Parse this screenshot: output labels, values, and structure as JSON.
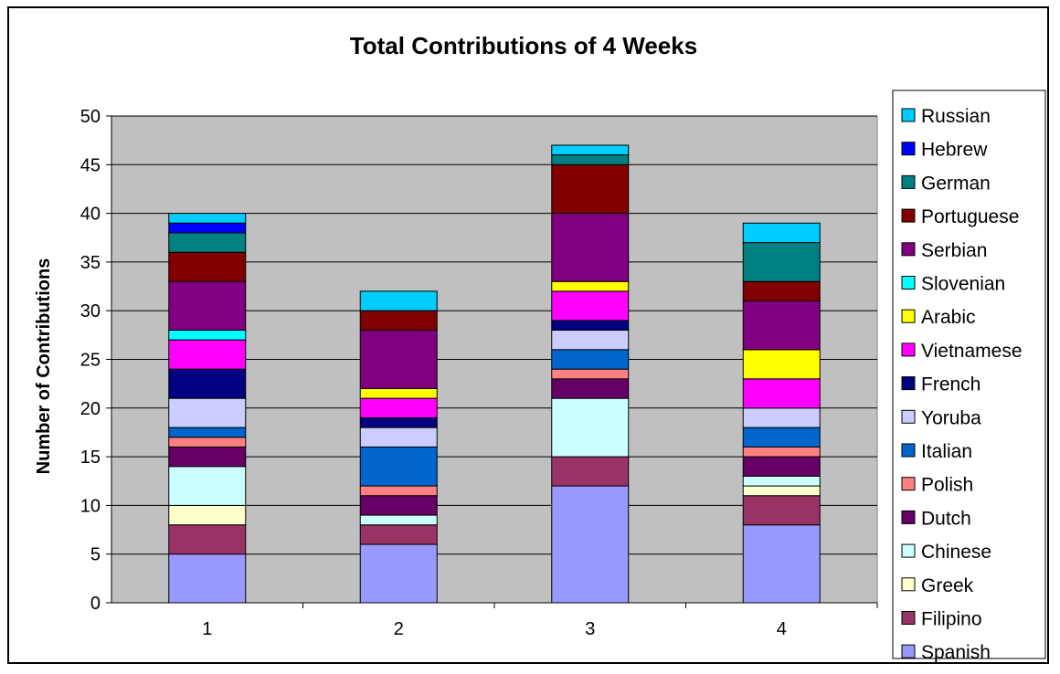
{
  "chart_data": {
    "type": "bar",
    "stacked": true,
    "title": "Total Contributions of 4 Weeks",
    "xlabel": "",
    "ylabel": "Number of Contributions",
    "ylim": [
      0,
      50
    ],
    "yticks": [
      0,
      5,
      10,
      15,
      20,
      25,
      30,
      35,
      40,
      45,
      50
    ],
    "grid": true,
    "legend_position": "right",
    "plot_background": "#c0c0c0",
    "categories": [
      "1",
      "2",
      "3",
      "4"
    ],
    "series": [
      {
        "name": "Spanish",
        "color": "#9999ff",
        "values": [
          5,
          6,
          12,
          8
        ]
      },
      {
        "name": "Filipino",
        "color": "#993366",
        "values": [
          3,
          2,
          3,
          3
        ]
      },
      {
        "name": "Greek",
        "color": "#ffffcc",
        "values": [
          2,
          0,
          0,
          1
        ]
      },
      {
        "name": "Chinese",
        "color": "#ccffff",
        "values": [
          4,
          1,
          6,
          1
        ]
      },
      {
        "name": "Dutch",
        "color": "#660066",
        "values": [
          2,
          2,
          2,
          2
        ]
      },
      {
        "name": "Polish",
        "color": "#ff8080",
        "values": [
          1,
          1,
          1,
          1
        ]
      },
      {
        "name": "Italian",
        "color": "#0066cc",
        "values": [
          1,
          4,
          2,
          2
        ]
      },
      {
        "name": "Yoruba",
        "color": "#ccccff",
        "values": [
          3,
          2,
          2,
          2
        ]
      },
      {
        "name": "French",
        "color": "#000080",
        "values": [
          3,
          1,
          1,
          0
        ]
      },
      {
        "name": "Vietnamese",
        "color": "#ff00ff",
        "values": [
          3,
          2,
          3,
          3
        ]
      },
      {
        "name": "Arabic",
        "color": "#ffff00",
        "values": [
          0,
          1,
          1,
          3
        ]
      },
      {
        "name": "Slovenian",
        "color": "#00ffff",
        "values": [
          1,
          0,
          0,
          0
        ]
      },
      {
        "name": "Serbian",
        "color": "#800080",
        "values": [
          5,
          6,
          7,
          5
        ]
      },
      {
        "name": "Portuguese",
        "color": "#800000",
        "values": [
          3,
          2,
          5,
          2
        ]
      },
      {
        "name": "German",
        "color": "#008080",
        "values": [
          2,
          0,
          1,
          4
        ]
      },
      {
        "name": "Hebrew",
        "color": "#0000ff",
        "values": [
          1,
          0,
          0,
          0
        ]
      },
      {
        "name": "Russian",
        "color": "#00ccff",
        "values": [
          1,
          2,
          1,
          2
        ]
      }
    ]
  }
}
